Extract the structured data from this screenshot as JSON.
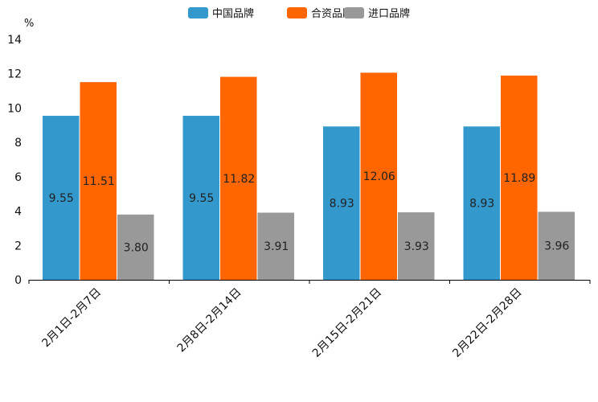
{
  "chart_data": {
    "type": "bar",
    "title": "",
    "xlabel": "",
    "ylabel": "%",
    "ylim": [
      0,
      14
    ],
    "yticks": [
      0,
      2,
      4,
      6,
      8,
      10,
      12,
      14
    ],
    "grid": false,
    "legend_position": "top-center",
    "categories": [
      "2月1日-2月7日",
      "2月8日-2月14日",
      "2月15日-2月21日",
      "2月22日-2月28日"
    ],
    "series": [
      {
        "name": "中国品牌",
        "color": "#3399CC",
        "values": [
          9.55,
          9.55,
          8.93,
          8.93
        ],
        "labels": [
          "9.55",
          "9.55",
          "8.93",
          "8.93"
        ]
      },
      {
        "name": "合资品牌",
        "color": "#FF6600",
        "values": [
          11.51,
          11.82,
          12.06,
          11.89
        ],
        "labels": [
          "11.51",
          "11.82",
          "12.06",
          "11.89"
        ]
      },
      {
        "name": "进口品牌",
        "color": "#999999",
        "values": [
          3.8,
          3.91,
          3.93,
          3.96
        ],
        "labels": [
          "3.80",
          "3.91",
          "3.93",
          "3.96"
        ]
      }
    ]
  }
}
